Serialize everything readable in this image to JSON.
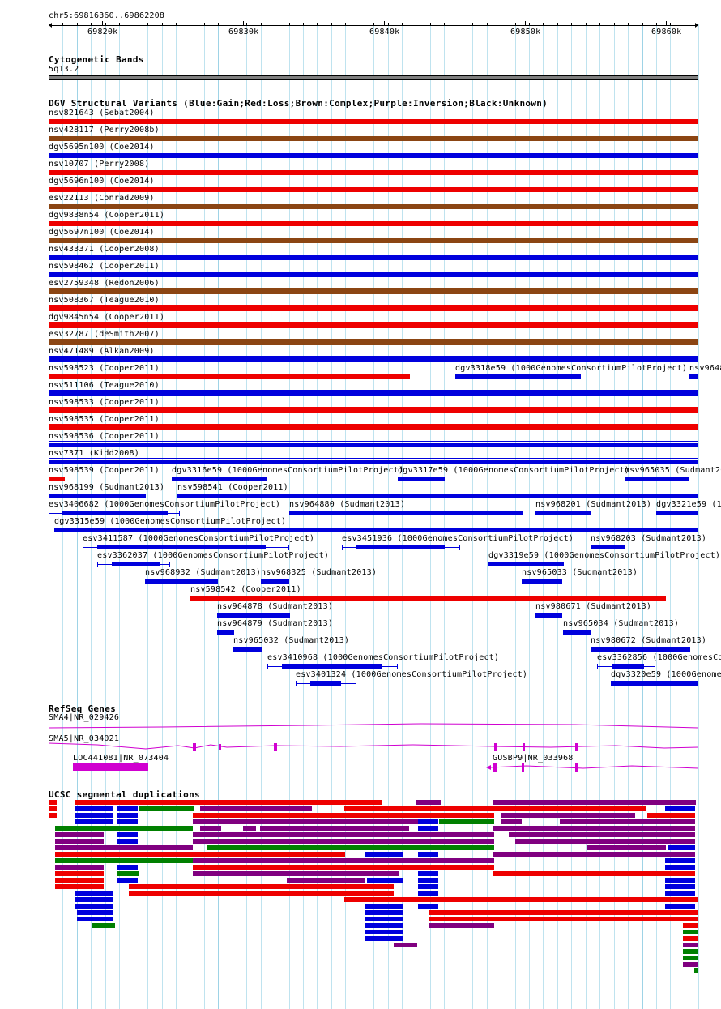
{
  "ruler": {
    "position": "chr5:69816360..69862208",
    "ticks": [
      "69820k",
      "69830k",
      "69840k",
      "69850k",
      "69860k"
    ]
  },
  "cytoband": {
    "title": "Cytogenetic Bands",
    "band": "5q13.2"
  },
  "dgv": {
    "title": "DGV Structural Variants (Blue:Gain;Red:Loss;Brown:Complex;Purple:Inversion;Black:Unknown)",
    "colors": {
      "gain": "#0000dd",
      "loss": "#ee0000",
      "complex": "#8b4513",
      "inversion": "#800080",
      "unknown": "#000000"
    },
    "full_rows": [
      {
        "label": "nsv821643 (Sebat2004)",
        "type": "loss"
      },
      {
        "label": "nsv428117 (Perry2008b)",
        "type": "complex"
      },
      {
        "label": "dgv5695n100 (Coe2014)",
        "type": "gain"
      },
      {
        "label": "nsv10707 (Perry2008)",
        "type": "loss"
      },
      {
        "label": "dgv5696n100 (Coe2014)",
        "type": "loss"
      },
      {
        "label": "esv22113 (Conrad2009)",
        "type": "complex"
      },
      {
        "label": "dgv9838n54 (Cooper2011)",
        "type": "loss"
      },
      {
        "label": "dgv5697n100 (Coe2014)",
        "type": "complex"
      },
      {
        "label": "nsv433371 (Cooper2008)",
        "type": "gain"
      },
      {
        "label": "nsv598462 (Cooper2011)",
        "type": "gain"
      },
      {
        "label": "esv2759348 (Redon2006)",
        "type": "complex"
      },
      {
        "label": "nsv508367 (Teague2010)",
        "type": "loss"
      },
      {
        "label": "dgv9845n54 (Cooper2011)",
        "type": "loss"
      },
      {
        "label": "esv32787 (deSmith2007)",
        "type": "complex"
      },
      {
        "label": "nsv471489 (Alkan2009)",
        "type": "gain"
      }
    ],
    "row16": {
      "a": "nsv598523 (Cooper2011)",
      "b": "dgv3318e59 (1000GenomesConsortiumPilotProject)",
      "c": "nsv9648"
    },
    "full_rows2": [
      {
        "label": "nsv511106 (Teague2010)",
        "type": "gain"
      },
      {
        "label": "nsv598533 (Cooper2011)",
        "type": "loss"
      },
      {
        "label": "nsv598535 (Cooper2011)",
        "type": "loss"
      },
      {
        "label": "nsv598536 (Cooper2011)",
        "type": "gain"
      },
      {
        "label": "nsv7371 (Kidd2008)",
        "type": "gain"
      }
    ],
    "packed": [
      "nsv598539 (Cooper2011)",
      "dgv3316e59 (1000GenomesConsortiumPilotProject)",
      "dgv3317e59 (1000GenomesConsortiumPilotProject)",
      "nsv965035 (Sudmant20",
      "nsv968199 (Sudmant2013)",
      "nsv598541 (Cooper2011)",
      "esv3406682 (1000GenomesConsortiumPilotProject)",
      "nsv964880 (Sudmant2013)",
      "nsv968201 (Sudmant2013)",
      "dgv3321e59 (10",
      "dgv3315e59 (1000GenomesConsortiumPilotProject)",
      "esv3411587 (1000GenomesConsortiumPilotProject)",
      "esv3451936 (1000GenomesConsortiumPilotProject)",
      "nsv968203 (Sudmant2013)",
      "esv3362037 (1000GenomesConsortiumPilotProject)",
      "dgv3319e59 (1000GenomesConsortiumPilotProject)",
      "nsv968932 (Sudmant2013)",
      "nsv968325 (Sudmant2013)",
      "nsv965033 (Sudmant2013)",
      "nsv598542 (Cooper2011)",
      "nsv964878 (Sudmant2013)",
      "nsv980671 (Sudmant2013)",
      "nsv964879 (Sudmant2013)",
      "nsv965034 (Sudmant2013)",
      "nsv965032 (Sudmant2013)",
      "nsv980672 (Sudmant2013)",
      "esv3410968 (1000GenomesConsortiumPilotProject)",
      "esv3362856 (1000GenomesCon",
      "esv3401324 (1000GenomesConsortiumPilotProject)",
      "dgv3320e59 (1000Genomes"
    ]
  },
  "refseq": {
    "title": "RefSeq Genes",
    "genes": [
      "SMA4|NR_029426",
      "SMA5|NR_034021",
      "LOC441081|NR_073404",
      "GUSBP9|NR_033968"
    ],
    "color": "#d000d0"
  },
  "segdup": {
    "title": "UCSC segmental duplications",
    "colors": {
      "red": "#ee0000",
      "blue": "#0000dd",
      "green": "#008000",
      "purple": "#800080"
    }
  }
}
